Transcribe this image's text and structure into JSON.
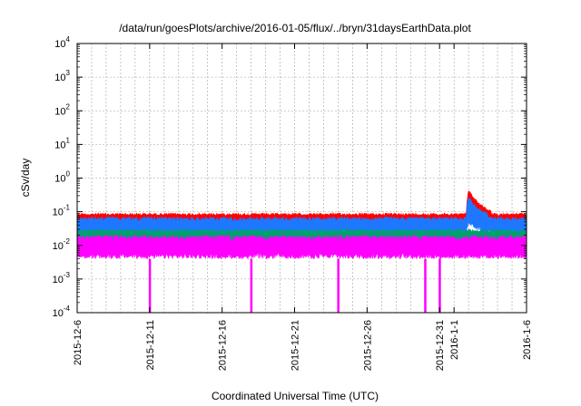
{
  "chart_data": {
    "type": "line",
    "title": "/data/run/goesPlots/archive/2016-01-05/flux/../bryn/31daysEarthData.plot",
    "xlabel": "Coordinated Universal Time (UTC)",
    "ylabel": "cSv/day",
    "yscale": "log",
    "ylim": [
      0.0001,
      10000
    ],
    "xlim": [
      "2015-12-06",
      "2016-01-06"
    ],
    "grid": true,
    "x_ticks": [
      "2015-12-6",
      "2015-12-11",
      "2015-12-16",
      "2015-12-21",
      "2015-12-26",
      "2015-12-31",
      "2016-1-1",
      "2016-1-6"
    ],
    "x_tick_dates": [
      "2015-12-06",
      "2015-12-11",
      "2015-12-16",
      "2015-12-21",
      "2015-12-26",
      "2015-12-31",
      "2016-01-01",
      "2016-01-06"
    ],
    "y_ticks": [
      {
        "base": "10",
        "exp": "-4"
      },
      {
        "base": "10",
        "exp": "-3"
      },
      {
        "base": "10",
        "exp": "-2"
      },
      {
        "base": "10",
        "exp": "-1"
      },
      {
        "base": "10",
        "exp": "0"
      },
      {
        "base": "10",
        "exp": "1"
      },
      {
        "base": "10",
        "exp": "2"
      },
      {
        "base": "10",
        "exp": "3"
      },
      {
        "base": "10",
        "exp": "4"
      }
    ],
    "series": [
      {
        "color": "#ff0000",
        "typical_range": [
          0.045,
          0.09
        ],
        "peak": {
          "date": "2016-01-02",
          "value": 0.45
        }
      },
      {
        "color": "#1e78ff",
        "typical_range": [
          0.02,
          0.07
        ],
        "peak": {
          "date": "2016-01-02",
          "value": 0.3
        }
      },
      {
        "color": "#00a070",
        "typical_range": [
          0.012,
          0.03
        ]
      },
      {
        "color": "#ff00ff",
        "typical_range": [
          0.004,
          0.02
        ],
        "dropouts": [
          "2015-12-11",
          "2015-12-18",
          "2015-12-24",
          "2015-12-30",
          "2015-12-31"
        ]
      }
    ]
  }
}
